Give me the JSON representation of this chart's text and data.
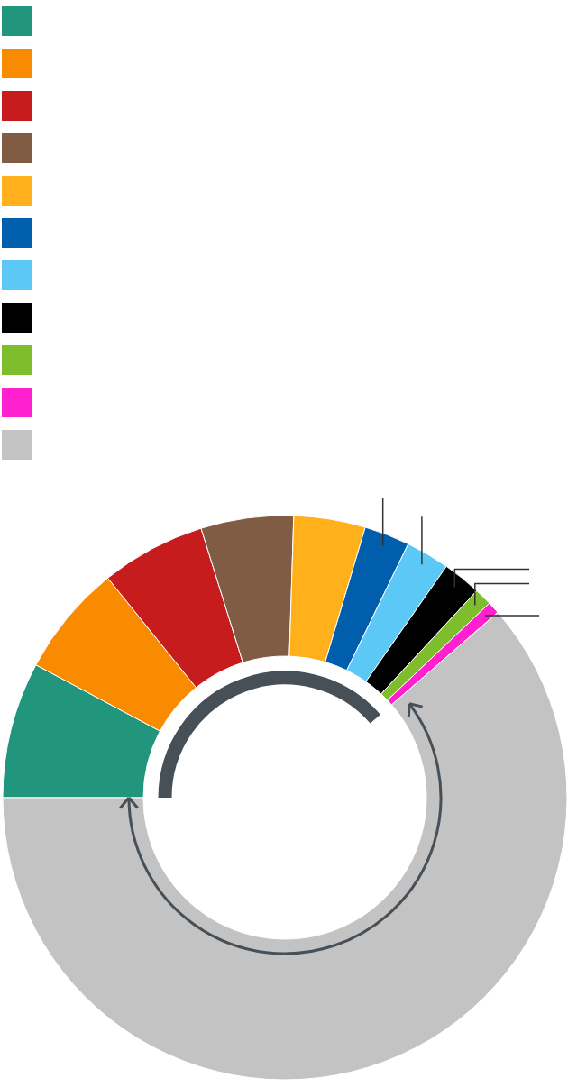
{
  "chart_data": {
    "type": "donut",
    "categories": [
      null,
      null,
      null,
      null,
      null,
      null,
      null,
      null,
      null,
      null,
      null
    ],
    "values": [
      7.8,
      6.4,
      6.0,
      5.3,
      4.1,
      2.6,
      2.5,
      2.2,
      1.0,
      0.7,
      61.4
    ],
    "colors": [
      "#21967c",
      "#f88b00",
      "#c71c1e",
      "#815c45",
      "#ffb01a",
      "#005eac",
      "#5bc8f5",
      "#000000",
      "#7ebd2c",
      "#ff20d0",
      "#c3c3c3"
    ]
  }
}
